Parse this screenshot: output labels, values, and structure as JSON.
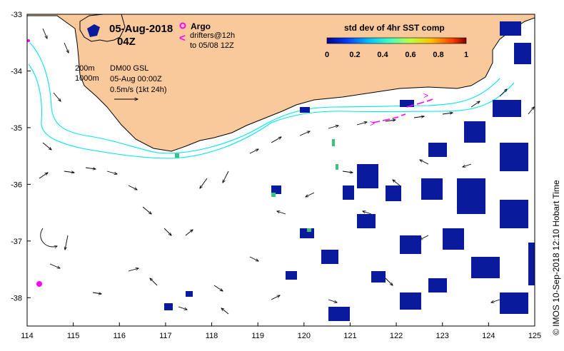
{
  "map": {
    "date": "05-Aug-2018",
    "hour": "04Z",
    "lon_range": [
      114,
      125
    ],
    "lat_range": [
      -38.5,
      -33
    ],
    "lon_ticks": [
      "114",
      "115",
      "116",
      "117",
      "118",
      "119",
      "120",
      "121",
      "122",
      "123",
      "124",
      "125"
    ],
    "lat_ticks": [
      "-33",
      "-34",
      "-35",
      "-36",
      "-37",
      "-38"
    ],
    "legend": {
      "argo_label": "Argo",
      "drifters_label": "drifters@12h",
      "drifters_sub": "to 05/08 12Z",
      "contour_200": "200m",
      "contour_1000": "1000m",
      "model": "DM00 GSL",
      "model_time": "05-Aug 00:00Z",
      "scale": "0.5m/s (1kt 24h)"
    },
    "colorbar": {
      "title": "std dev of 4hr SST comp",
      "ticks": [
        "0",
        "0.2",
        "0.4",
        "0.6",
        "0.8",
        "1"
      ],
      "range": [
        0,
        1
      ]
    },
    "credit": "© IMOS 10-Sep-2018 12:10 Hobart Time",
    "colors": {
      "land": "#f9c89b",
      "contour": "#00e5ee",
      "argo": "#ff00ff",
      "drifter": "#ff00ff",
      "sst_patch": "#0a1a9c"
    },
    "argo_floats": [
      {
        "lon": 114.3,
        "lat": -37.75
      }
    ],
    "drifters": [
      {
        "lon": 121.5,
        "lat": -34.9
      },
      {
        "lon": 122.3,
        "lat": -34.6
      }
    ]
  }
}
